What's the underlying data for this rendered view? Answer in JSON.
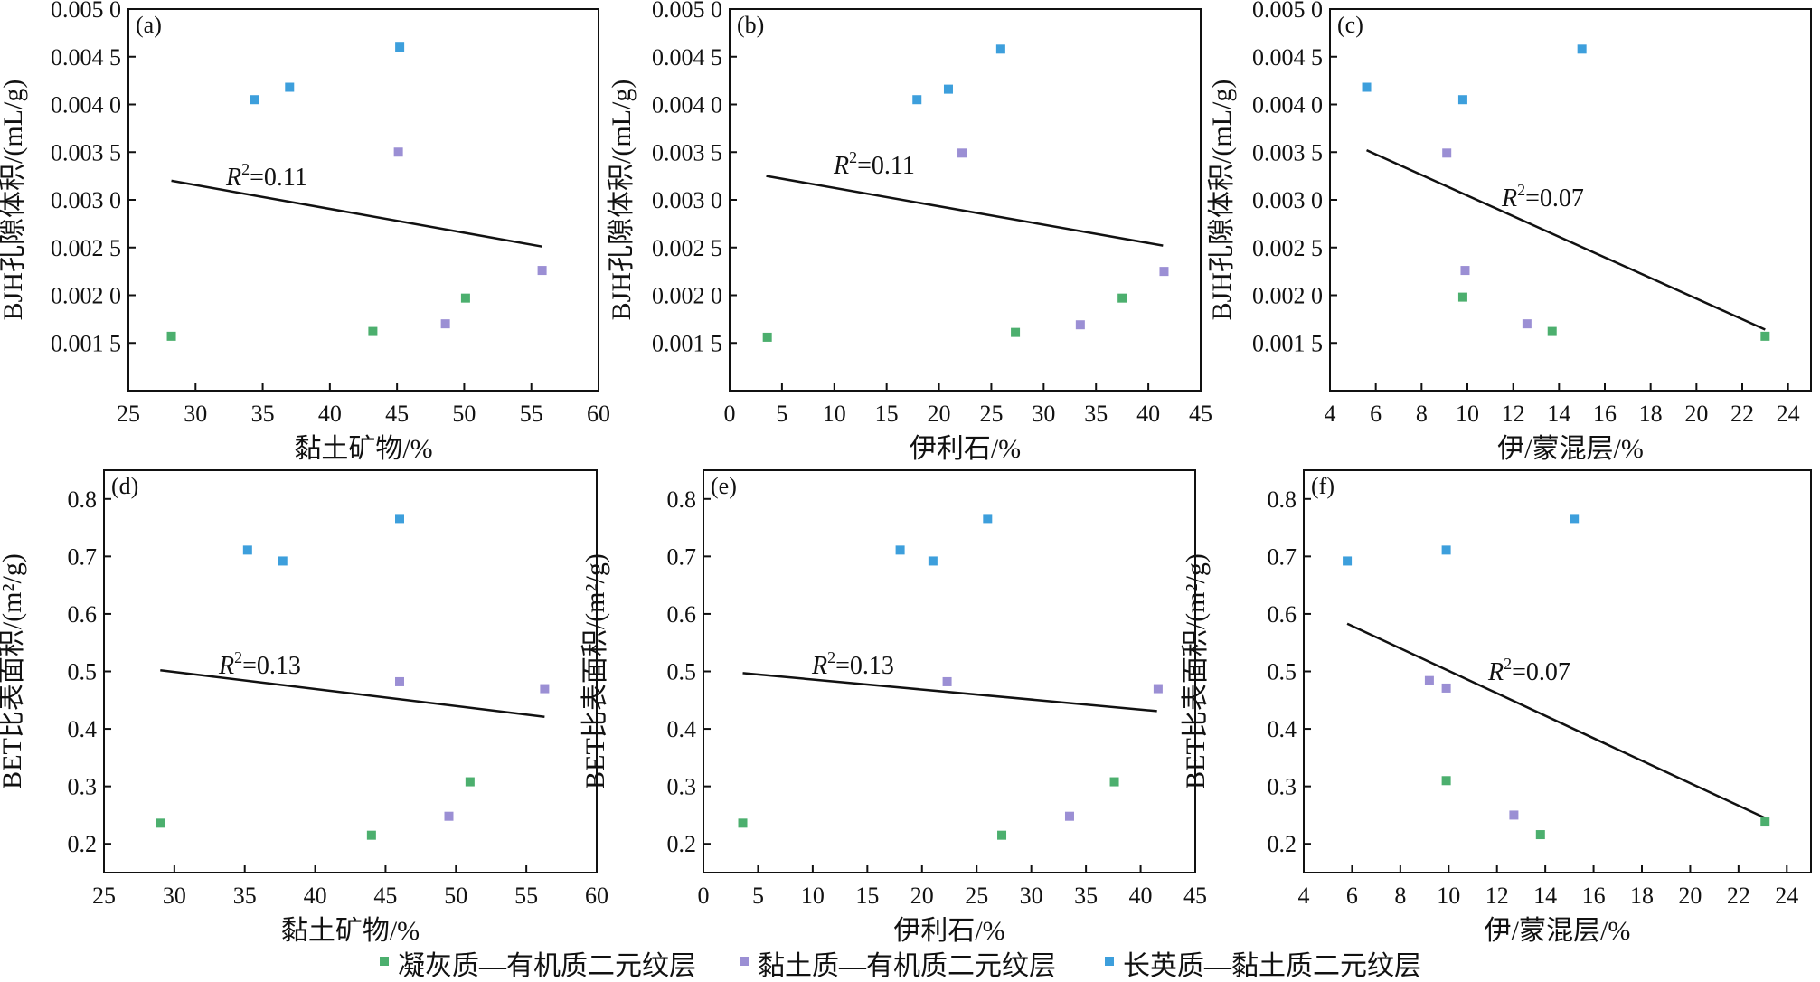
{
  "legend": [
    {
      "label": "凝灰质—有机质二元纹层",
      "color": "#4caf6e"
    },
    {
      "label": "黏土质—有机质二元纹层",
      "color": "#9b8fd4"
    },
    {
      "label": "长英质—黏土质二元纹层",
      "color": "#3d9fdc"
    }
  ],
  "chart_data": [
    {
      "type": "scatter",
      "panel": "(a)",
      "r2": "0.11",
      "xlabel": "黏土矿物/%",
      "ylabel": "BJH孔隙体积/(mL/g)",
      "xlim": [
        25,
        60
      ],
      "ylim": [
        0.001,
        0.005
      ],
      "xticks": [
        "25",
        "30",
        "35",
        "40",
        "45",
        "50",
        "55",
        "60"
      ],
      "yticks": [
        "0.001 5",
        "0.002 0",
        "0.002 5",
        "0.003 0",
        "0.003 5",
        "0.004 0",
        "0.004 5",
        "0.005 0"
      ],
      "ytick_values": [
        0.0015,
        0.002,
        0.0025,
        0.003,
        0.0035,
        0.004,
        0.0045,
        0.005
      ],
      "trend": [
        [
          28.2,
          0.0032
        ],
        [
          55.8,
          0.00251
        ]
      ],
      "series": [
        {
          "color": "#4caf6e",
          "points": [
            [
              28.2,
              0.00157
            ],
            [
              43.2,
              0.00162
            ],
            [
              50.1,
              0.00197
            ]
          ]
        },
        {
          "color": "#9b8fd4",
          "points": [
            [
              45.1,
              0.0035
            ],
            [
              48.6,
              0.0017
            ],
            [
              55.8,
              0.00226
            ]
          ]
        },
        {
          "color": "#3d9fdc",
          "points": [
            [
              34.4,
              0.00405
            ],
            [
              37.0,
              0.00418
            ],
            [
              45.2,
              0.0046
            ]
          ]
        }
      ]
    },
    {
      "type": "scatter",
      "panel": "(b)",
      "r2": "0.11",
      "xlabel": "伊利石/%",
      "ylabel": "BJH孔隙体积/(mL/g)",
      "xlim": [
        0,
        45
      ],
      "ylim": [
        0.001,
        0.005
      ],
      "xticks": [
        "0",
        "5",
        "10",
        "15",
        "20",
        "25",
        "30",
        "35",
        "40",
        "45"
      ],
      "yticks": [
        "0.001 5",
        "0.002 0",
        "0.002 5",
        "0.003 0",
        "0.003 5",
        "0.004 0",
        "0.004 5",
        "0.005 0"
      ],
      "ytick_values": [
        0.0015,
        0.002,
        0.0025,
        0.003,
        0.0035,
        0.004,
        0.0045,
        0.005
      ],
      "trend": [
        [
          3.5,
          0.00325
        ],
        [
          41.4,
          0.00252
        ]
      ],
      "series": [
        {
          "color": "#4caf6e",
          "points": [
            [
              3.6,
              0.00156
            ],
            [
              27.3,
              0.00161
            ],
            [
              37.5,
              0.00197
            ]
          ]
        },
        {
          "color": "#9b8fd4",
          "points": [
            [
              22.2,
              0.00349
            ],
            [
              33.5,
              0.00169
            ],
            [
              41.5,
              0.00225
            ]
          ]
        },
        {
          "color": "#3d9fdc",
          "points": [
            [
              17.9,
              0.00405
            ],
            [
              20.9,
              0.00416
            ],
            [
              25.9,
              0.00458
            ]
          ]
        }
      ]
    },
    {
      "type": "scatter",
      "panel": "(c)",
      "r2": "0.07",
      "xlabel": "伊/蒙混层/%",
      "ylabel": "BJH孔隙体积/(mL/g)",
      "xlim": [
        4,
        25
      ],
      "ylim": [
        0.001,
        0.005
      ],
      "xticks": [
        "4",
        "6",
        "8",
        "10",
        "12",
        "14",
        "16",
        "18",
        "20",
        "22",
        "24"
      ],
      "yticks": [
        "0.001 5",
        "0.002 0",
        "0.002 5",
        "0.003 0",
        "0.003 5",
        "0.004 0",
        "0.004 5",
        "0.005 0"
      ],
      "ytick_values": [
        0.0015,
        0.002,
        0.0025,
        0.003,
        0.0035,
        0.004,
        0.0045,
        0.005
      ],
      "trend": [
        [
          5.6,
          0.00352
        ],
        [
          23.0,
          0.00164
        ]
      ],
      "series": [
        {
          "color": "#4caf6e",
          "points": [
            [
              9.8,
              0.00198
            ],
            [
              13.7,
              0.00162
            ],
            [
              23.0,
              0.00157
            ]
          ]
        },
        {
          "color": "#9b8fd4",
          "points": [
            [
              9.1,
              0.00349
            ],
            [
              9.9,
              0.00226
            ],
            [
              12.6,
              0.0017
            ]
          ]
        },
        {
          "color": "#3d9fdc",
          "points": [
            [
              5.6,
              0.00418
            ],
            [
              9.8,
              0.00405
            ],
            [
              15.0,
              0.00458
            ]
          ]
        }
      ]
    },
    {
      "type": "scatter",
      "panel": "(d)",
      "r2": "0.13",
      "xlabel": "黏土矿物/%",
      "ylabel": "BET比表面积/(m²/g)",
      "xlim": [
        25,
        60
      ],
      "ylim": [
        0.15,
        0.85
      ],
      "xticks": [
        "25",
        "30",
        "35",
        "40",
        "45",
        "50",
        "55",
        "60"
      ],
      "yticks": [
        "0.2",
        "0.3",
        "0.4",
        "0.5",
        "0.6",
        "0.7",
        "0.8"
      ],
      "ytick_values": [
        0.2,
        0.3,
        0.4,
        0.5,
        0.6,
        0.7,
        0.8
      ],
      "trend": [
        [
          29.0,
          0.502
        ],
        [
          56.3,
          0.421
        ]
      ],
      "series": [
        {
          "color": "#4caf6e",
          "points": [
            [
              29.0,
              0.236
            ],
            [
              44.0,
              0.215
            ],
            [
              51.0,
              0.308
            ]
          ]
        },
        {
          "color": "#9b8fd4",
          "points": [
            [
              46.0,
              0.482
            ],
            [
              49.5,
              0.248
            ],
            [
              56.3,
              0.47
            ]
          ]
        },
        {
          "color": "#3d9fdc",
          "points": [
            [
              35.2,
              0.711
            ],
            [
              37.7,
              0.692
            ],
            [
              46.0,
              0.766
            ]
          ]
        }
      ]
    },
    {
      "type": "scatter",
      "panel": "(e)",
      "r2": "0.13",
      "xlabel": "伊利石/%",
      "ylabel": "BET比表面积/(m²/g)",
      "xlim": [
        0,
        45
      ],
      "ylim": [
        0.15,
        0.85
      ],
      "xticks": [
        "0",
        "5",
        "10",
        "15",
        "20",
        "25",
        "30",
        "35",
        "40",
        "45"
      ],
      "yticks": [
        "0.2",
        "0.3",
        "0.4",
        "0.5",
        "0.6",
        "0.7",
        "0.8"
      ],
      "ytick_values": [
        0.2,
        0.3,
        0.4,
        0.5,
        0.6,
        0.7,
        0.8
      ],
      "trend": [
        [
          3.6,
          0.497
        ],
        [
          41.5,
          0.431
        ]
      ],
      "series": [
        {
          "color": "#4caf6e",
          "points": [
            [
              3.6,
              0.236
            ],
            [
              27.3,
              0.215
            ],
            [
              37.6,
              0.308
            ]
          ]
        },
        {
          "color": "#9b8fd4",
          "points": [
            [
              22.3,
              0.482
            ],
            [
              33.5,
              0.248
            ],
            [
              41.6,
              0.47
            ]
          ]
        },
        {
          "color": "#3d9fdc",
          "points": [
            [
              18.0,
              0.711
            ],
            [
              21.0,
              0.692
            ],
            [
              26.0,
              0.766
            ]
          ]
        }
      ]
    },
    {
      "type": "scatter",
      "panel": "(f)",
      "r2": "0.07",
      "xlabel": "伊/蒙混层/%",
      "ylabel": "BET比表面积/(m²/g)",
      "xlim": [
        4,
        25
      ],
      "ylim": [
        0.15,
        0.85
      ],
      "xticks": [
        "4",
        "6",
        "8",
        "10",
        "12",
        "14",
        "16",
        "18",
        "20",
        "22",
        "24"
      ],
      "yticks": [
        "0.2",
        "0.3",
        "0.4",
        "0.5",
        "0.6",
        "0.7",
        "0.8"
      ],
      "ytick_values": [
        0.2,
        0.3,
        0.4,
        0.5,
        0.6,
        0.7,
        0.8
      ],
      "trend": [
        [
          5.8,
          0.583
        ],
        [
          23.1,
          0.245
        ]
      ],
      "series": [
        {
          "color": "#4caf6e",
          "points": [
            [
              9.9,
              0.31
            ],
            [
              13.8,
              0.216
            ],
            [
              23.1,
              0.238
            ]
          ]
        },
        {
          "color": "#9b8fd4",
          "points": [
            [
              9.2,
              0.484
            ],
            [
              9.9,
              0.471
            ],
            [
              12.7,
              0.25
            ]
          ]
        },
        {
          "color": "#3d9fdc",
          "points": [
            [
              5.8,
              0.692
            ],
            [
              9.9,
              0.711
            ],
            [
              15.2,
              0.766
            ]
          ]
        }
      ]
    }
  ]
}
